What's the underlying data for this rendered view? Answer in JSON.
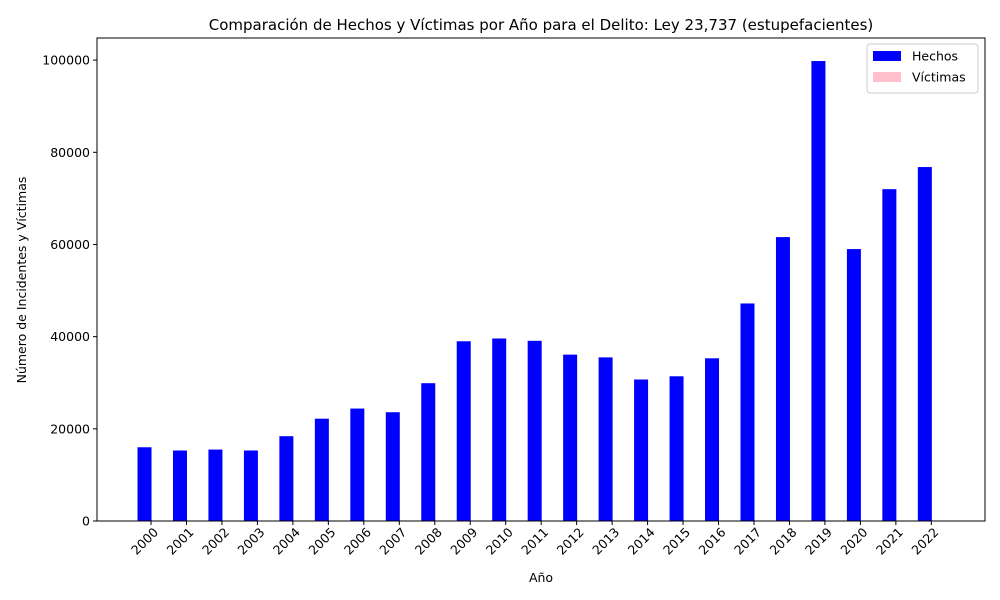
{
  "chart_data": {
    "type": "bar",
    "title": "Comparación de Hechos y Víctimas por Año para el Delito: Ley 23,737 (estupefacientes)",
    "xlabel": "Año",
    "ylabel": "Número de Incidentes y Víctimas",
    "categories": [
      "2000",
      "2001",
      "2002",
      "2003",
      "2004",
      "2005",
      "2006",
      "2007",
      "2008",
      "2009",
      "2010",
      "2011",
      "2012",
      "2013",
      "2014",
      "2015",
      "2016",
      "2017",
      "2018",
      "2019",
      "2020",
      "2021",
      "2022"
    ],
    "series": [
      {
        "name": "Hechos",
        "color": "#0000ff",
        "values": [
          16000,
          15300,
          15500,
          15300,
          18400,
          22200,
          24400,
          23600,
          29900,
          39000,
          39600,
          39100,
          36100,
          35500,
          30700,
          31400,
          35300,
          47200,
          61600,
          99800,
          59000,
          72000,
          76800
        ]
      },
      {
        "name": "Víctimas",
        "color": "#ffc0cb",
        "values": [
          0,
          0,
          0,
          0,
          0,
          0,
          0,
          0,
          0,
          0,
          0,
          0,
          0,
          0,
          0,
          0,
          0,
          0,
          0,
          0,
          0,
          0,
          0
        ]
      }
    ],
    "ylim": [
      0,
      104800
    ],
    "yticks": [
      0,
      20000,
      40000,
      60000,
      80000,
      100000
    ],
    "legend_position": "top-right",
    "grid": false
  }
}
